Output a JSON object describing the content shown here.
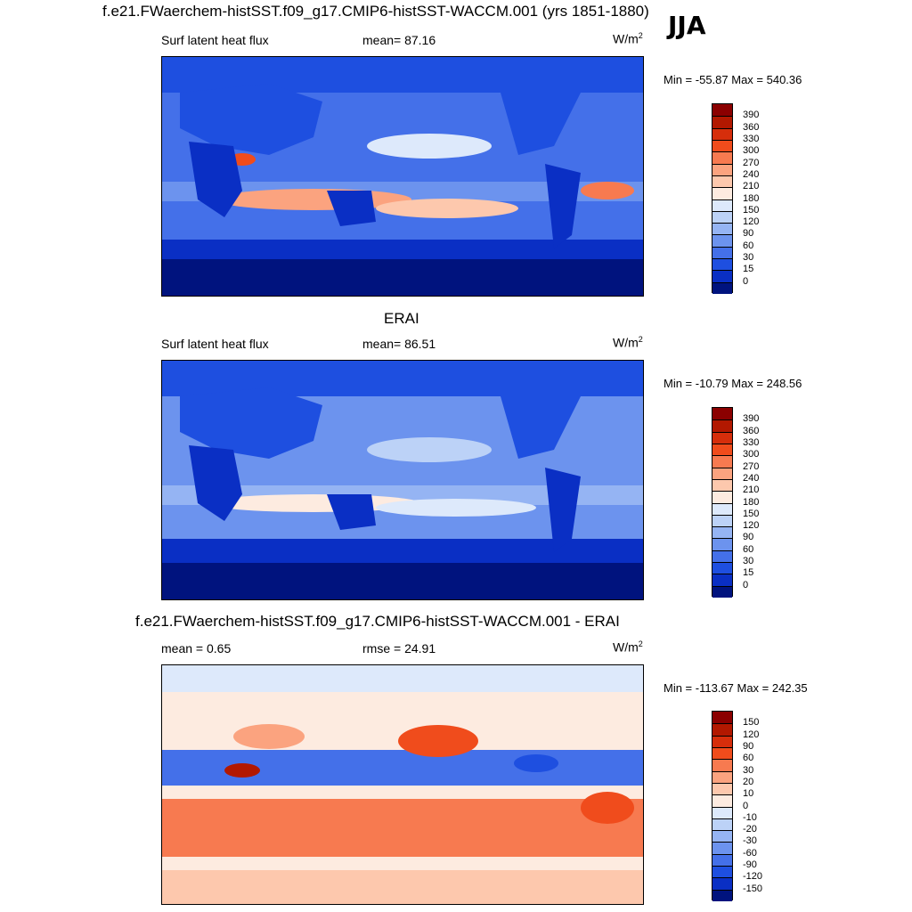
{
  "figure": {
    "main_title": "f.e21.FWaerchem-histSST.f09_g17.CMIP6-histSST-WACCM.001 (yrs 1851-1880)",
    "season": "JJA"
  },
  "panels": [
    {
      "title": "",
      "left_label": "Surf latent heat flux",
      "center_label": "mean=  87.16",
      "units_base": "W/m",
      "units_sup": "2",
      "minmax": "Min = -55.87 Max = 540.36"
    },
    {
      "title": "ERAI",
      "left_label": "Surf latent heat flux",
      "center_label": "mean=  86.51",
      "units_base": "W/m",
      "units_sup": "2",
      "minmax": "Min = -10.79 Max = 248.56"
    },
    {
      "title": "f.e21.FWaerchem-histSST.f09_g17.CMIP6-histSST-WACCM.001 - ERAI",
      "left_label": "mean =   0.65",
      "center_label": "rmse =  24.91",
      "units_base": "W/m",
      "units_sup": "2",
      "minmax": "Min = -113.67 Max = 242.35"
    }
  ],
  "colorbars": {
    "field": {
      "labels": [
        "390",
        "360",
        "330",
        "300",
        "270",
        "240",
        "210",
        "180",
        "150",
        "120",
        "90",
        "60",
        "30",
        "15",
        "0"
      ],
      "colors": [
        "#8b0000",
        "#b21800",
        "#d62e0b",
        "#f04c1c",
        "#f77a50",
        "#fba37f",
        "#fdc8ad",
        "#fdebe0",
        "#dde9fb",
        "#bcd2f7",
        "#95b4f3",
        "#6c93ee",
        "#4470e9",
        "#1e4fe0",
        "#0a2fc4",
        "#00137e"
      ]
    },
    "diff": {
      "labels": [
        "150",
        "120",
        "90",
        "60",
        "30",
        "20",
        "10",
        "0",
        "-10",
        "-20",
        "-30",
        "-60",
        "-90",
        "-120",
        "-150"
      ],
      "colors": [
        "#8b0000",
        "#b21800",
        "#d62e0b",
        "#f04c1c",
        "#f77a50",
        "#fba37f",
        "#fdc8ad",
        "#fdebe0",
        "#dde9fb",
        "#bcd2f7",
        "#95b4f3",
        "#6c93ee",
        "#4470e9",
        "#1e4fe0",
        "#0a2fc4",
        "#00137e"
      ]
    }
  },
  "chart_data": [
    {
      "type": "heatmap",
      "title": "f.e21.FWaerchem-histSST.f09_g17.CMIP6-histSST-WACCM.001 (yrs 1851-1880)",
      "variable": "Surf latent heat flux",
      "season": "JJA",
      "units": "W/m2",
      "mean": 87.16,
      "min": -55.87,
      "max": 540.36,
      "levels": [
        0,
        15,
        30,
        60,
        90,
        120,
        150,
        180,
        210,
        240,
        270,
        300,
        330,
        360,
        390
      ]
    },
    {
      "type": "heatmap",
      "title": "ERAI",
      "variable": "Surf latent heat flux",
      "units": "W/m2",
      "mean": 86.51,
      "min": -10.79,
      "max": 248.56,
      "levels": [
        0,
        15,
        30,
        60,
        90,
        120,
        150,
        180,
        210,
        240,
        270,
        300,
        330,
        360,
        390
      ]
    },
    {
      "type": "heatmap",
      "title": "f.e21.FWaerchem-histSST.f09_g17.CMIP6-histSST-WACCM.001 - ERAI",
      "units": "W/m2",
      "mean": 0.65,
      "rmse": 24.91,
      "min": -113.67,
      "max": 242.35,
      "levels": [
        -150,
        -120,
        -90,
        -60,
        -30,
        -20,
        -10,
        0,
        10,
        20,
        30,
        60,
        90,
        120,
        150
      ]
    }
  ]
}
